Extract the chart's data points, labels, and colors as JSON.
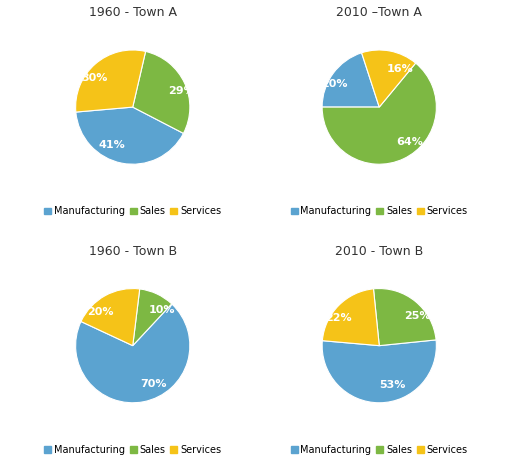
{
  "charts": [
    {
      "title": "1960 - Town A",
      "values": [
        41,
        29,
        30
      ],
      "labels": [
        "41%",
        "29%",
        "30%"
      ],
      "startangle": 185
    },
    {
      "title": "2010 –Town A",
      "values": [
        20,
        64,
        16
      ],
      "labels": [
        "20%",
        "64%",
        "16%"
      ],
      "startangle": 108
    },
    {
      "title": "1960 - Town B",
      "values": [
        70,
        10,
        20
      ],
      "labels": [
        "70%",
        "10%",
        "20%"
      ],
      "startangle": 155
    },
    {
      "title": "2010 - Town B",
      "values": [
        53,
        25,
        22
      ],
      "labels": [
        "53%",
        "25%",
        "22%"
      ],
      "startangle": 175
    }
  ],
  "colors": [
    "#5BA3D0",
    "#7DB843",
    "#F5C318"
  ],
  "legend_labels": [
    "Manufacturing",
    "Sales",
    "Services"
  ],
  "background_color": "#FFFFFF",
  "title_fontsize": 9,
  "label_fontsize": 8,
  "legend_fontsize": 7
}
